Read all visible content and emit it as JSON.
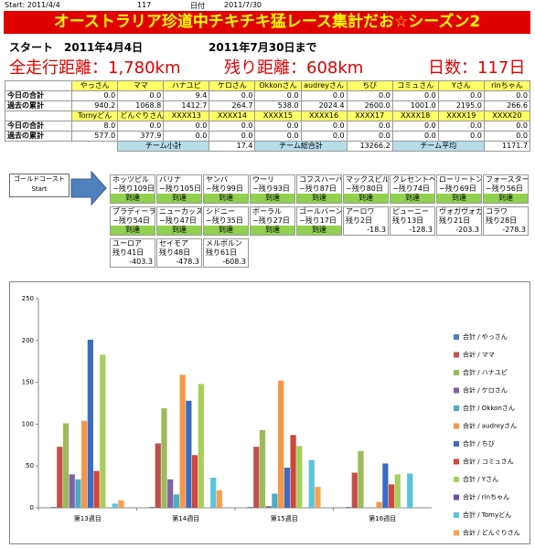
{
  "header": {
    "start": "Start: 2011/4/4",
    "days": "117",
    "date_label": "日付",
    "date": "2011/7/30",
    "title": "オーストラリア珍道中チキチキ猛レース集計だお☆シーズン2",
    "start_line": "スタート　2011年4月4日",
    "end_line": "2011年7月30日まで",
    "total": "全走行距離：1,780km",
    "remaining": "残り距離：608km",
    "days_count": "日数：117日"
  },
  "table": {
    "groups": [
      {
        "names": [
          "やっさん",
          "ママ",
          "ハナユピ",
          "ケロさん",
          "Okkonさん",
          "audreyさん",
          "ちび",
          "コミュさん",
          "Yさん",
          "rinちゃん"
        ],
        "rows": [
          {
            "label": "今日の合計",
            "values": [
              "0.0",
              "0.0",
              "9.4",
              "0.0",
              "0.0",
              "0.0",
              "0.0",
              "0.0",
              "0.0",
              "0.0"
            ]
          },
          {
            "label": "過去の累計",
            "values": [
              "940.2",
              "1068.8",
              "1412.7",
              "264.7",
              "538.0",
              "2024.4",
              "2600.0",
              "1001.0",
              "2195.0",
              "266.6"
            ]
          }
        ]
      },
      {
        "names": [
          "Tomyどん",
          "どんぐりさん",
          "XXXX13",
          "XXXX14",
          "XXXX15",
          "XXXX16",
          "XXXX17",
          "XXXX18",
          "XXXX19",
          "XXXX20"
        ],
        "rows": [
          {
            "label": "今日の合計",
            "values": [
              "8.0",
              "0.0",
              "0.0",
              "0.0",
              "0.0",
              "0.0",
              "0.0",
              "0.0",
              "0.0",
              "0.0"
            ]
          },
          {
            "label": "過去の累計",
            "values": [
              "577.0",
              "377.9",
              "0.0",
              "0.0",
              "0.0",
              "0.0",
              "0.0",
              "0.0",
              "0.0",
              "0.0"
            ]
          }
        ]
      }
    ],
    "summary": [
      {
        "label": "チーム小計",
        "value": "17.4"
      },
      {
        "label": "チーム総合計",
        "value": "13266.2"
      },
      {
        "label": "チーム平均",
        "value": "1171.7"
      }
    ]
  },
  "course": {
    "start": [
      "ゴールドコースト",
      "Start"
    ],
    "done": "到達",
    "towns": [
      {
        "name": "ホッツピル",
        "days": "~残り109日",
        "status": "到達"
      },
      {
        "name": "バリナ",
        "days": "~残り105日",
        "status": "到達"
      },
      {
        "name": "ヤンバ",
        "days": "~残り99日",
        "status": "到達"
      },
      {
        "name": "ウーリ",
        "days": "~残り93日",
        "status": "到達"
      },
      {
        "name": "コフスハーバー",
        "days": "~残り87日",
        "status": "到達"
      },
      {
        "name": "マックスビル",
        "days": "~残り80日",
        "status": "到達"
      },
      {
        "name": "クレセントヘッド",
        "days": "~残り74日",
        "status": "到達"
      },
      {
        "name": "ローリートン",
        "days": "~残り69日",
        "status": "到達"
      },
      {
        "name": "フォースター",
        "days": "~残り56日",
        "status": "到達"
      },
      {
        "name": "ブラディーラ",
        "days": "~残り54日",
        "status": "到達"
      },
      {
        "name": "ニューカッスル",
        "days": "~残り47日",
        "status": "到達"
      },
      {
        "name": "シドニー",
        "days": "~残り35日",
        "status": "到達"
      },
      {
        "name": "ボーラル",
        "days": "~残り27日",
        "status": "到達"
      },
      {
        "name": "ゴールバーン",
        "days": "~残り17日",
        "status": "到達"
      },
      {
        "name": "アーロワ",
        "days": "残り2日",
        "status": "-18.3"
      },
      {
        "name": "ピューニー",
        "days": "残り13日",
        "status": "-128.3"
      },
      {
        "name": "ヴォガヴォガ",
        "days": "残り21日",
        "status": "-203.3"
      },
      {
        "name": "コラワ",
        "days": "残り28日",
        "status": "-278.3"
      },
      {
        "name": "ユーロア",
        "days": "残り41日",
        "status": "-403.3"
      },
      {
        "name": "セイモア",
        "days": "残り48日",
        "status": "-478.3"
      },
      {
        "name": "メルボルン",
        "days": "残り61日",
        "status": "-608.3"
      }
    ]
  },
  "chart_data": {
    "type": "bar",
    "categories": [
      "第13週目",
      "第14週目",
      "第15週目",
      "第16週目"
    ],
    "ylim": [
      0,
      250
    ],
    "yticks": [
      0,
      50,
      100,
      150,
      200,
      250
    ],
    "legend": "right",
    "series": [
      {
        "name": "合計 / やっさん",
        "color": "#4f81bd",
        "values": [
          1,
          1,
          1,
          1
        ]
      },
      {
        "name": "合計 / ママ",
        "color": "#c0504d",
        "values": [
          73,
          77,
          73,
          42
        ]
      },
      {
        "name": "合計 / ハナユピ",
        "color": "#9bbb59",
        "values": [
          101,
          119,
          93,
          68
        ]
      },
      {
        "name": "合計 / ケロさん",
        "color": "#8064a2",
        "values": [
          40,
          34,
          2,
          0
        ]
      },
      {
        "name": "合計 / Okkonさん",
        "color": "#4bacc6",
        "values": [
          34,
          16,
          17,
          0
        ]
      },
      {
        "name": "合計 / audreyさん",
        "color": "#f79646",
        "values": [
          104,
          159,
          152,
          7
        ]
      },
      {
        "name": "合計 / ちび",
        "color": "#3b6cc2",
        "values": [
          201,
          128,
          48,
          53
        ]
      },
      {
        "name": "合計 / コミュさん",
        "color": "#d0463c",
        "values": [
          44,
          63,
          87,
          28
        ]
      },
      {
        "name": "合計 / Yさん",
        "color": "#a6d05a",
        "values": [
          183,
          148,
          74,
          40
        ]
      },
      {
        "name": "合計 / rinちゃん",
        "color": "#6a4f99",
        "values": [
          0,
          0,
          0,
          0
        ]
      },
      {
        "name": "合計 / Tomyどん",
        "color": "#5ac3dc",
        "values": [
          5,
          36,
          57,
          41
        ]
      },
      {
        "name": "合計 / どんぐりさん",
        "color": "#f7a050",
        "values": [
          9,
          21,
          25,
          0
        ]
      }
    ]
  }
}
